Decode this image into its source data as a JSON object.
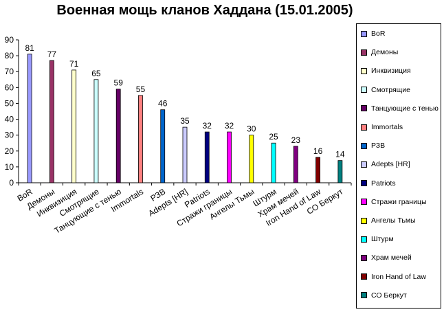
{
  "chart_data": {
    "type": "bar",
    "title": "Военная мощь кланов Хаддана (15.01.2005)",
    "categories": [
      "BoR",
      "Демоны",
      "Инквизиция",
      "Смотрящие",
      "Танцующие с тенью",
      "Immortals",
      "РЗВ",
      "Adepts [HR]",
      "Patriots",
      "Стражи границы",
      "Ангелы Тьмы",
      "Штурм",
      "Храм мечей",
      "Iron Hand of Law",
      "СО Беркут"
    ],
    "values": [
      81,
      77,
      71,
      65,
      59,
      55,
      46,
      35,
      32,
      32,
      30,
      25,
      23,
      16,
      14
    ],
    "colors": [
      "#9999FF",
      "#993366",
      "#FFFFCC",
      "#CCFFFF",
      "#660066",
      "#FF8080",
      "#0066CC",
      "#CCCCFF",
      "#000080",
      "#FF00FF",
      "#FFFF00",
      "#00FFFF",
      "#800080",
      "#800000",
      "#008080"
    ],
    "ylim": [
      0,
      90
    ],
    "yticks": [
      0,
      10,
      20,
      30,
      40,
      50,
      60,
      70,
      80,
      90
    ],
    "grid": false,
    "legend_position": "right",
    "data_labels": true
  }
}
